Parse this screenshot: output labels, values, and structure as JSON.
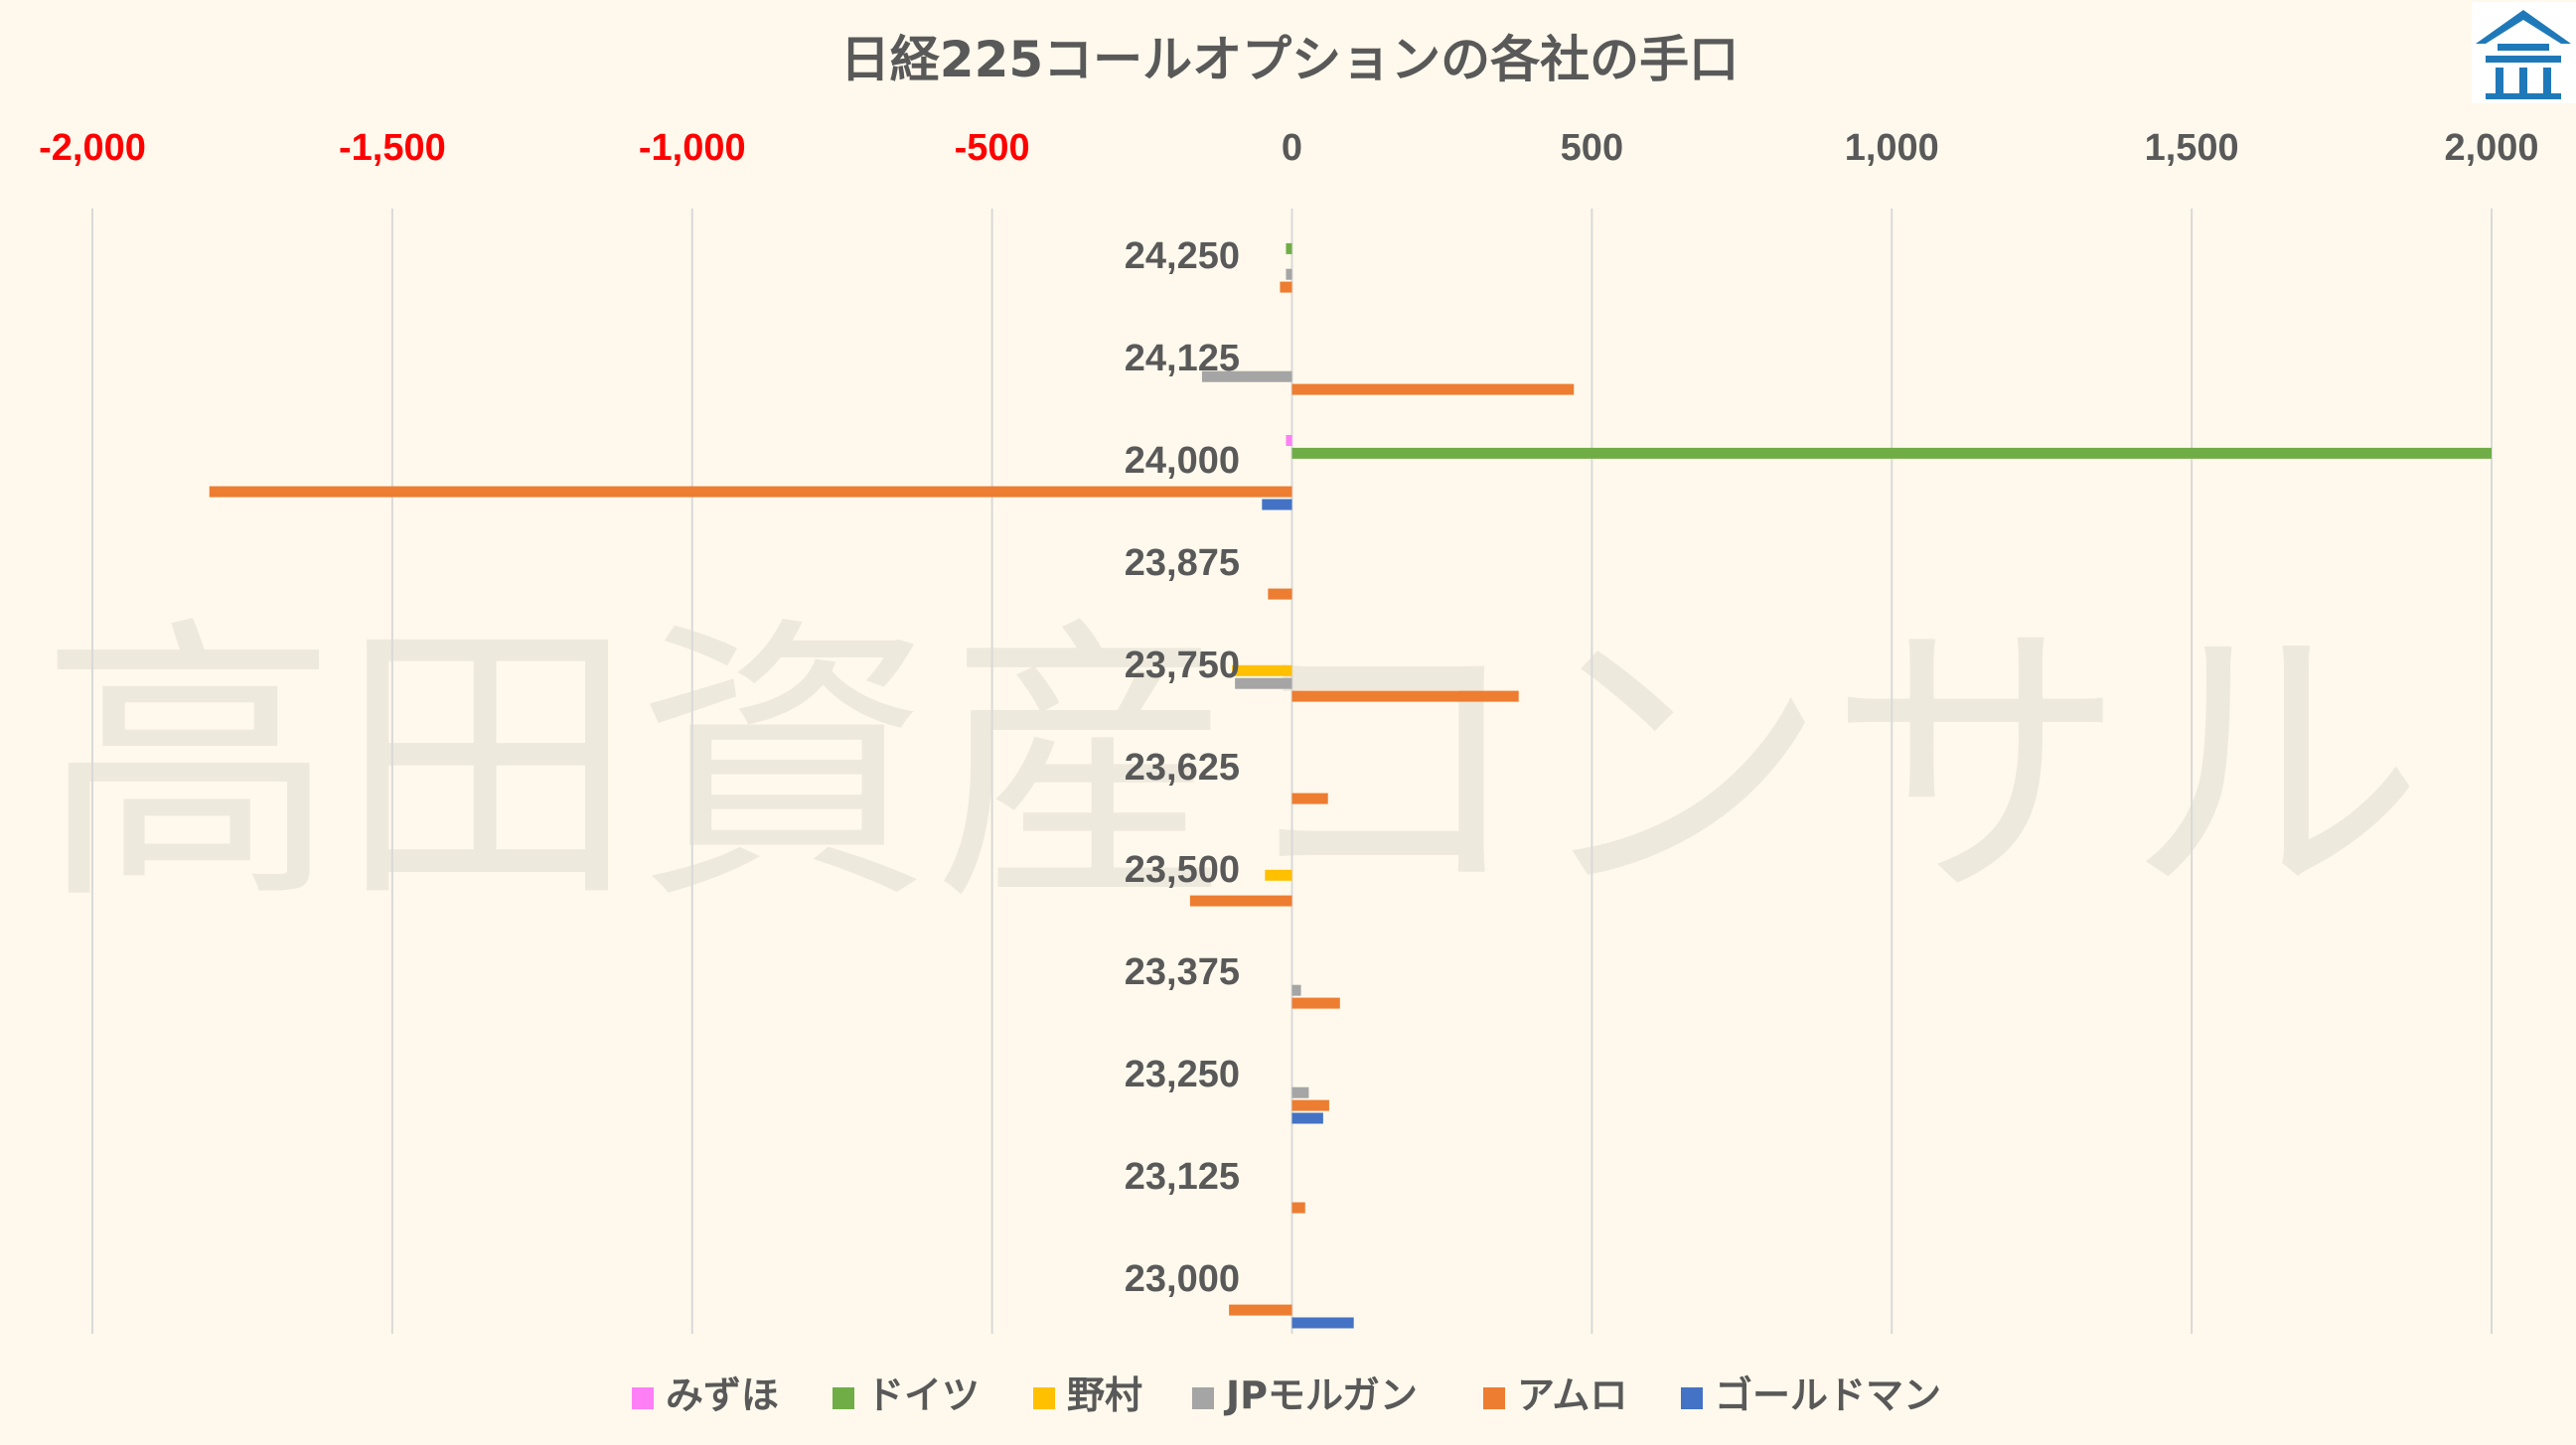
{
  "chart_data": {
    "type": "bar",
    "orientation": "horizontal",
    "title": "日経225コールオプションの各社の手口",
    "watermark": "高田資産コンサル",
    "xlim": [
      -2000,
      2000
    ],
    "xticks": [
      "-2,000",
      "-1,500",
      "-1,000",
      "-500",
      "0",
      "500",
      "1,000",
      "1,500",
      "2,000"
    ],
    "xtick_values": [
      -2000,
      -1500,
      -1000,
      -500,
      0,
      500,
      1000,
      1500,
      2000
    ],
    "negative_tick_color": "#ff0000",
    "positive_tick_color": "#595959",
    "grid": "vertical",
    "legend_position": "bottom",
    "categories": [
      "24,250",
      "24,125",
      "24,000",
      "23,875",
      "23,750",
      "23,625",
      "23,500",
      "23,375",
      "23,250",
      "23,125",
      "23,000"
    ],
    "series": [
      {
        "name": "みずほ",
        "color": "#ff7ff7",
        "values": [
          0,
          0,
          -10,
          0,
          0,
          0,
          0,
          0,
          0,
          0,
          0
        ]
      },
      {
        "name": "ドイツ",
        "color": "#70ad47",
        "values": [
          -10,
          0,
          2000,
          0,
          0,
          0,
          0,
          0,
          0,
          0,
          0
        ]
      },
      {
        "name": "野村",
        "color": "#ffc000",
        "values": [
          0,
          0,
          0,
          0,
          -100,
          0,
          -45,
          0,
          0,
          0,
          0
        ]
      },
      {
        "name": "JPモルガン",
        "color": "#a5a5a5",
        "values": [
          -10,
          -150,
          0,
          0,
          -95,
          0,
          0,
          15,
          28,
          0,
          0
        ]
      },
      {
        "name": "アムロ",
        "color": "#ed7d31",
        "values": [
          -20,
          470,
          -1805,
          -40,
          378,
          60,
          -170,
          80,
          62,
          22,
          -105
        ]
      },
      {
        "name": "ゴールドマン",
        "color": "#4472c4",
        "values": [
          0,
          0,
          -50,
          0,
          0,
          0,
          0,
          0,
          52,
          0,
          103
        ]
      }
    ]
  },
  "logo": {
    "name": "takada-logo",
    "color": "#1f79b8"
  }
}
